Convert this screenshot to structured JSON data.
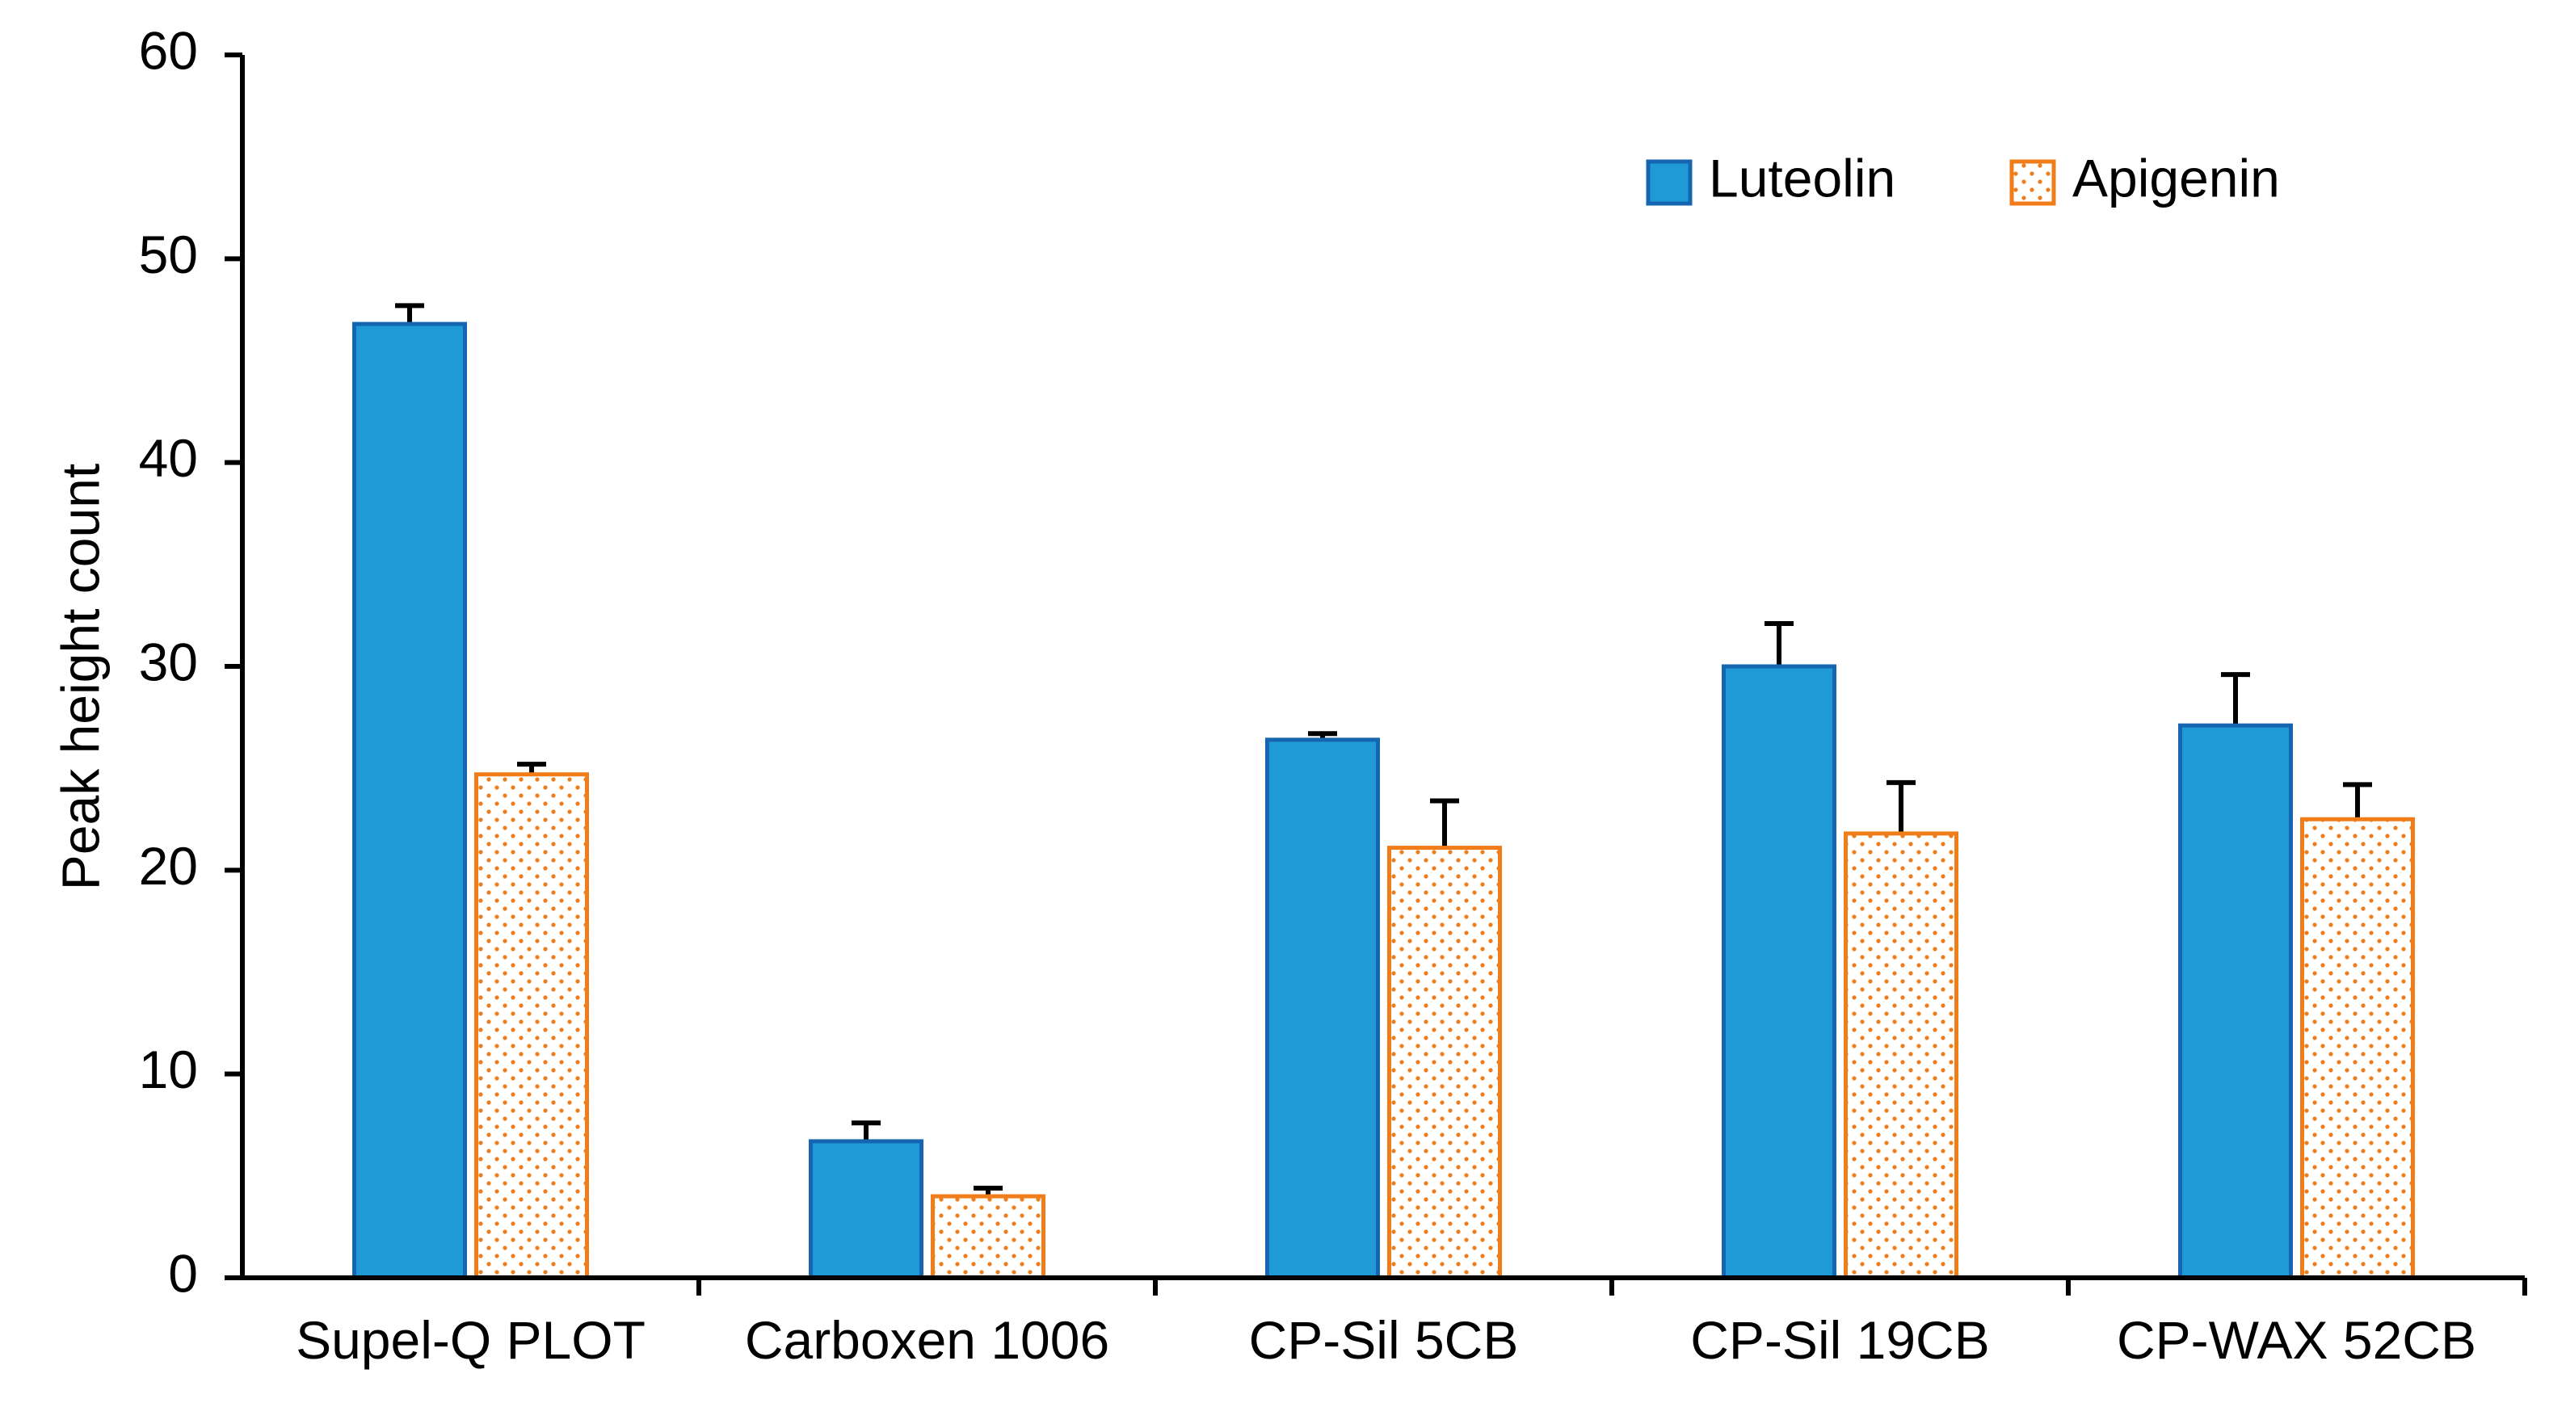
{
  "chart_data": {
    "type": "bar",
    "title": "",
    "xlabel": "",
    "ylabel": "Peak height count",
    "ylim": [
      0,
      60
    ],
    "yticks": [
      0,
      10,
      20,
      30,
      40,
      50,
      60
    ],
    "categories": [
      "Supel-Q PLOT",
      "Carboxen 1006",
      "CP-Sil 5CB",
      "CP-Sil 19CB",
      "CP-WAX 52CB"
    ],
    "series": [
      {
        "name": "Luteolin",
        "values": [
          46.8,
          6.7,
          26.4,
          30.0,
          27.1
        ],
        "errors": [
          0.9,
          0.9,
          0.3,
          2.1,
          2.5
        ],
        "color": "#1f9ad6",
        "border": "#1565b0",
        "pattern": "solid"
      },
      {
        "name": "Apigenin",
        "values": [
          24.7,
          4.0,
          21.1,
          21.8,
          22.5
        ],
        "errors": [
          0.5,
          0.4,
          2.3,
          2.5,
          1.7
        ],
        "color": "#ffffff",
        "border": "#f07c1a",
        "pattern": "dotted"
      }
    ],
    "legend": {
      "position": "top-right"
    },
    "grid": false
  }
}
